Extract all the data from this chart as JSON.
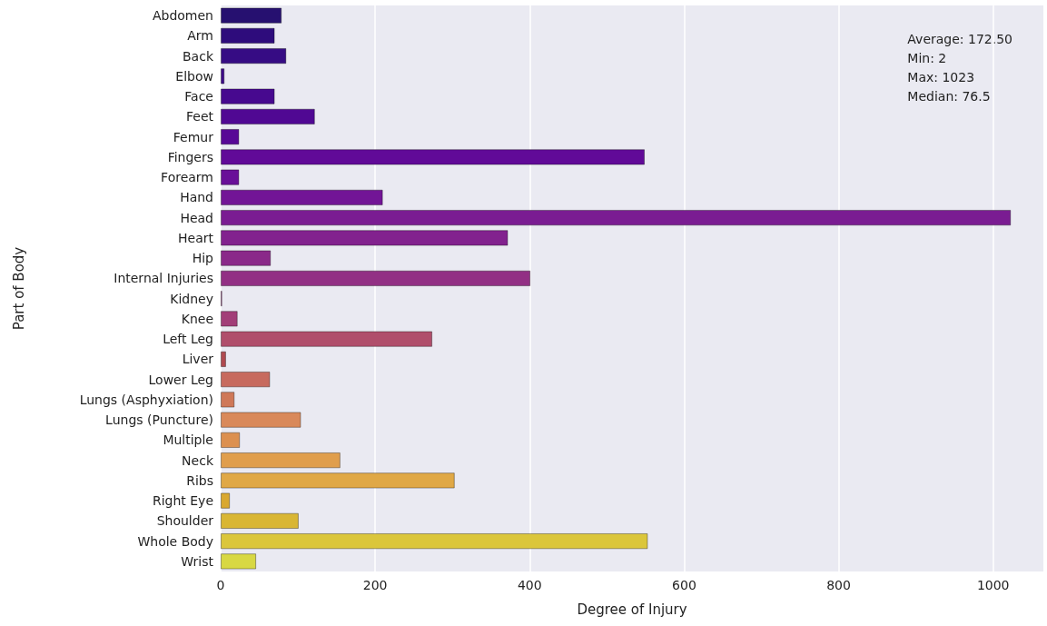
{
  "chart_data": {
    "type": "bar",
    "orientation": "horizontal",
    "xlabel": "Degree of Injury",
    "ylabel": "Part of Body",
    "categories": [
      "Abdomen",
      "Arm",
      "Back",
      "Elbow",
      "Face",
      "Feet",
      "Femur",
      "Fingers",
      "Forearm",
      "Hand",
      "Head",
      "Heart",
      "Hip",
      "Internal Injuries",
      "Kidney",
      "Knee",
      "Left Leg",
      "Liver",
      "Lower Leg",
      "Lungs (Asphyxiation)",
      "Lungs (Puncture)",
      "Multiple",
      "Neck",
      "Ribs",
      "Right Eye",
      "Shoulder",
      "Whole Body",
      "Wrist"
    ],
    "values": [
      79,
      70,
      85,
      5,
      70,
      122,
      24,
      549,
      24,
      210,
      1023,
      372,
      65,
      401,
      2,
      22,
      274,
      7,
      64,
      18,
      104,
      25,
      155,
      303,
      12,
      101,
      553,
      46
    ],
    "colors": [
      "#261070",
      "#2e0c7c",
      "#360c84",
      "#3e0a8a",
      "#47098f",
      "#500893",
      "#580896",
      "#610a98",
      "#690f98",
      "#721596",
      "#7a1c92",
      "#82228e",
      "#8a2989",
      "#923084",
      "#9a377e",
      "#a23e78",
      "#b04e6b",
      "#b04a50",
      "#c76a5e",
      "#cf7858",
      "#d9895a",
      "#dc9050",
      "#e09e4c",
      "#e0a846",
      "#d9a830",
      "#d9b634",
      "#dbc63b",
      "#d8d843"
    ],
    "xlim": [
      0,
      1065
    ],
    "xticks": [
      0,
      200,
      400,
      600,
      800,
      1000
    ],
    "grid": "x",
    "annotations": [
      "Average: 172.50\nMin: 2\nMax: 1023\nMedian: 76.5"
    ]
  }
}
